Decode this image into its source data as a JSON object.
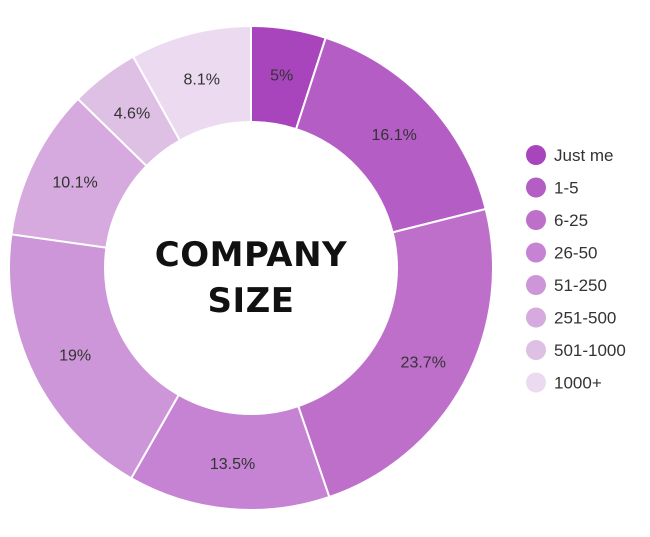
{
  "center_title": [
    "COMPANY",
    "SIZE"
  ],
  "chart_data": {
    "type": "pie",
    "title": "",
    "categories": [
      "Just me",
      "1-5",
      "6-25",
      "26-50",
      "51-250",
      "251-500",
      "501-1000",
      "1000+"
    ],
    "values": [
      5,
      16.1,
      23.7,
      13.5,
      19,
      10.1,
      4.6,
      8.1
    ],
    "data_labels": [
      "5%",
      "16.1%",
      "23.7%",
      "13.5%",
      "19%",
      "10.1%",
      "4.6%",
      "8.1%"
    ],
    "colors": [
      "#a844bc",
      "#b45ec5",
      "#bd6fca",
      "#c683d3",
      "#cd96d8",
      "#d6aade",
      "#dfc0e5",
      "#ebdaf0"
    ],
    "legend_position": "right",
    "donut": true
  }
}
